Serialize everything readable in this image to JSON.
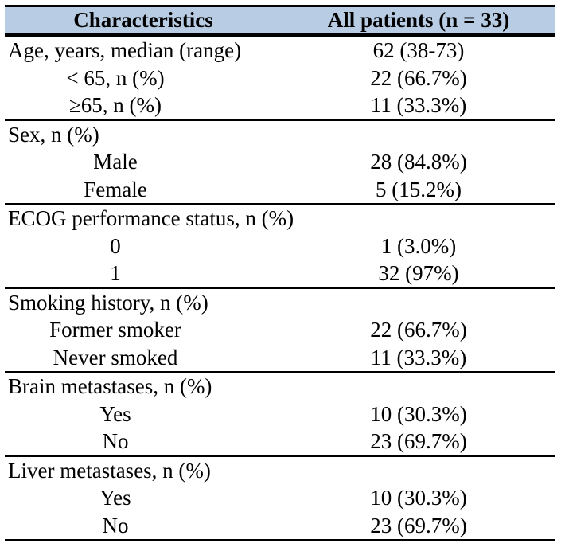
{
  "table": {
    "title_semantics": "Patient baseline characteristics table",
    "colors": {
      "header_background": "#b8cce4",
      "rule_color": "#000000",
      "text_color": "#000000"
    },
    "header": {
      "col1": "Characteristics",
      "col2": "All patients (n = 33)"
    },
    "sections": [
      {
        "rows": [
          {
            "label": "Age, years, median (range)",
            "value": "62 (38-73)"
          },
          {
            "label": "< 65, n (%)",
            "value": "22 (66.7%)"
          },
          {
            "label": "≥65, n (%)",
            "value": "11 (33.3%)"
          }
        ]
      },
      {
        "rows": [
          {
            "label": "Sex, n (%)",
            "value": ""
          },
          {
            "label": "Male",
            "value": "28 (84.8%)"
          },
          {
            "label": "Female",
            "value": "5 (15.2%)"
          }
        ]
      },
      {
        "rows": [
          {
            "label": "ECOG performance status, n (%)",
            "value": ""
          },
          {
            "label": "0",
            "value": "1 (3.0%)"
          },
          {
            "label": "1",
            "value": "32 (97%)"
          }
        ]
      },
      {
        "rows": [
          {
            "label": "Smoking history, n (%)",
            "value": ""
          },
          {
            "label": "Former smoker",
            "value": "22 (66.7%)"
          },
          {
            "label": "Never smoked",
            "value": "11 (33.3%)"
          }
        ]
      },
      {
        "rows": [
          {
            "label": "Brain metastases, n (%)",
            "value": ""
          },
          {
            "label": "Yes",
            "value": "10 (30.3%)"
          },
          {
            "label": "No",
            "value": "23 (69.7%)"
          }
        ]
      },
      {
        "rows": [
          {
            "label": "Liver metastases, n (%)",
            "value": ""
          },
          {
            "label": "Yes",
            "value": "10 (30.3%)"
          },
          {
            "label": "No",
            "value": "23 (69.7%)"
          }
        ]
      }
    ]
  }
}
